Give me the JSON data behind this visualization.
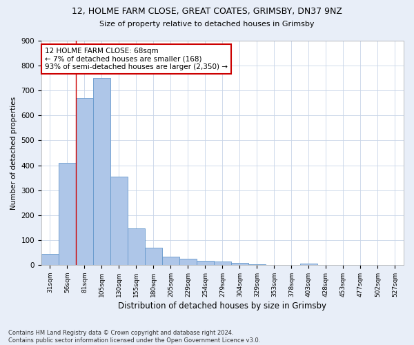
{
  "title_line1": "12, HOLME FARM CLOSE, GREAT COATES, GRIMSBY, DN37 9NZ",
  "title_line2": "Size of property relative to detached houses in Grimsby",
  "xlabel": "Distribution of detached houses by size in Grimsby",
  "ylabel": "Number of detached properties",
  "categories": [
    "31sqm",
    "56sqm",
    "81sqm",
    "105sqm",
    "130sqm",
    "155sqm",
    "180sqm",
    "205sqm",
    "229sqm",
    "254sqm",
    "279sqm",
    "304sqm",
    "329sqm",
    "353sqm",
    "378sqm",
    "403sqm",
    "428sqm",
    "453sqm",
    "477sqm",
    "502sqm",
    "527sqm"
  ],
  "values": [
    45,
    410,
    670,
    750,
    355,
    148,
    70,
    33,
    25,
    17,
    13,
    8,
    2,
    0,
    0,
    6,
    0,
    0,
    0,
    0,
    0
  ],
  "bar_color": "#aec6e8",
  "bar_edge_color": "#6699cc",
  "property_line_x": 1.5,
  "property_line_color": "#cc0000",
  "annotation_text": "12 HOLME FARM CLOSE: 68sqm\n← 7% of detached houses are smaller (168)\n93% of semi-detached houses are larger (2,350) →",
  "annotation_box_color": "#ffffff",
  "annotation_box_edge_color": "#cc0000",
  "ylim": [
    0,
    900
  ],
  "yticks": [
    0,
    100,
    200,
    300,
    400,
    500,
    600,
    700,
    800,
    900
  ],
  "footnote": "Contains HM Land Registry data © Crown copyright and database right 2024.\nContains public sector information licensed under the Open Government Licence v3.0.",
  "bg_color": "#e8eef8",
  "plot_bg_color": "#ffffff",
  "grid_color": "#c8d4e8"
}
